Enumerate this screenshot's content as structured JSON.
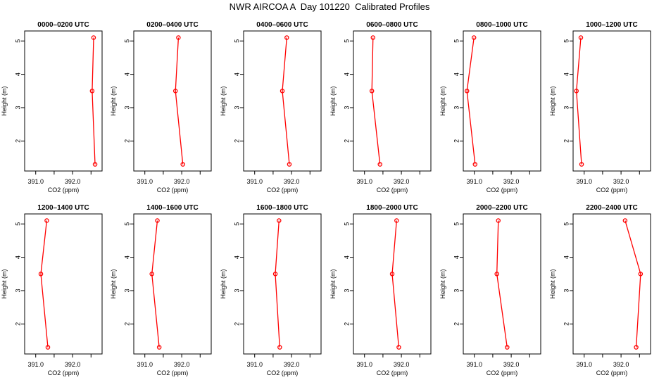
{
  "title": "NWR AIRCOA A  Day 101220  Calibrated Profiles",
  "colors": {
    "series": "#ff0000",
    "axis": "#000000",
    "background": "#ffffff"
  },
  "chart_data": [
    {
      "type": "line",
      "title": "0000–0200 UTC",
      "xlabel": "CO2 (ppm)",
      "ylabel": "Height (m)",
      "xlim": [
        390.7,
        392.8
      ],
      "ylim": [
        1.1,
        5.3
      ],
      "xticks": [
        391.0,
        392.0
      ],
      "xtick_labels": [
        "391.0",
        "392.0"
      ],
      "yticks": [
        2,
        3,
        4,
        5
      ],
      "ytick_labels": [
        "2",
        "3",
        "4",
        "5"
      ],
      "x": [
        392.57,
        392.53,
        392.61
      ],
      "y": [
        5.1,
        3.5,
        1.3
      ]
    },
    {
      "type": "line",
      "title": "0200–0400 UTC",
      "xlabel": "CO2 (ppm)",
      "ylabel": "Height (m)",
      "xlim": [
        390.7,
        392.8
      ],
      "ylim": [
        1.1,
        5.3
      ],
      "xticks": [
        391.0,
        392.0
      ],
      "xtick_labels": [
        "391.0",
        "392.0"
      ],
      "yticks": [
        2,
        3,
        4,
        5
      ],
      "ytick_labels": [
        "2",
        "3",
        "4",
        "5"
      ],
      "x": [
        391.91,
        391.83,
        392.03
      ],
      "y": [
        5.1,
        3.5,
        1.3
      ]
    },
    {
      "type": "line",
      "title": "0400–0600 UTC",
      "xlabel": "CO2 (ppm)",
      "ylabel": "Height (m)",
      "xlim": [
        390.7,
        392.8
      ],
      "ylim": [
        1.1,
        5.3
      ],
      "xticks": [
        391.0,
        392.0
      ],
      "xtick_labels": [
        "391.0",
        "392.0"
      ],
      "yticks": [
        2,
        3,
        4,
        5
      ],
      "ytick_labels": [
        "2",
        "3",
        "4",
        "5"
      ],
      "x": [
        391.87,
        391.75,
        391.94
      ],
      "y": [
        5.1,
        3.5,
        1.3
      ]
    },
    {
      "type": "line",
      "title": "0600–0800 UTC",
      "xlabel": "CO2 (ppm)",
      "ylabel": "Height (m)",
      "xlim": [
        390.7,
        392.8
      ],
      "ylim": [
        1.1,
        5.3
      ],
      "xticks": [
        391.0,
        392.0
      ],
      "xtick_labels": [
        "391.0",
        "392.0"
      ],
      "yticks": [
        2,
        3,
        4,
        5
      ],
      "ytick_labels": [
        "2",
        "3",
        "4",
        "5"
      ],
      "x": [
        391.23,
        391.2,
        391.42
      ],
      "y": [
        5.1,
        3.5,
        1.3
      ]
    },
    {
      "type": "line",
      "title": "0800–1000 UTC",
      "xlabel": "CO2 (ppm)",
      "ylabel": "Height (m)",
      "xlim": [
        390.7,
        392.8
      ],
      "ylim": [
        1.1,
        5.3
      ],
      "xticks": [
        391.0,
        392.0
      ],
      "xtick_labels": [
        "391.0",
        "392.0"
      ],
      "yticks": [
        2,
        3,
        4,
        5
      ],
      "ytick_labels": [
        "2",
        "3",
        "4",
        "5"
      ],
      "x": [
        390.99,
        390.8,
        391.02
      ],
      "y": [
        5.1,
        3.5,
        1.3
      ]
    },
    {
      "type": "line",
      "title": "1000–1200 UTC",
      "xlabel": "CO2 (ppm)",
      "ylabel": "Height (m)",
      "xlim": [
        390.7,
        392.8
      ],
      "ylim": [
        1.1,
        5.3
      ],
      "xticks": [
        391.0,
        392.0
      ],
      "xtick_labels": [
        "391.0",
        "392.0"
      ],
      "yticks": [
        2,
        3,
        4,
        5
      ],
      "ytick_labels": [
        "2",
        "3",
        "4",
        "5"
      ],
      "x": [
        390.91,
        390.79,
        390.93
      ],
      "y": [
        5.1,
        3.5,
        1.3
      ]
    },
    {
      "type": "line",
      "title": "1200–1400 UTC",
      "xlabel": "CO2 (ppm)",
      "ylabel": "Height (m)",
      "xlim": [
        390.7,
        392.8
      ],
      "ylim": [
        1.1,
        5.3
      ],
      "xticks": [
        391.0,
        392.0
      ],
      "xtick_labels": [
        "391.0",
        "392.0"
      ],
      "yticks": [
        2,
        3,
        4,
        5
      ],
      "ytick_labels": [
        "2",
        "3",
        "4",
        "5"
      ],
      "x": [
        391.3,
        391.14,
        391.33
      ],
      "y": [
        5.1,
        3.5,
        1.3
      ]
    },
    {
      "type": "line",
      "title": "1400–1600 UTC",
      "xlabel": "CO2 (ppm)",
      "ylabel": "Height (m)",
      "xlim": [
        390.7,
        392.8
      ],
      "ylim": [
        1.1,
        5.3
      ],
      "xticks": [
        391.0,
        392.0
      ],
      "xtick_labels": [
        "391.0",
        "392.0"
      ],
      "yticks": [
        2,
        3,
        4,
        5
      ],
      "ytick_labels": [
        "2",
        "3",
        "4",
        "5"
      ],
      "x": [
        391.34,
        391.19,
        391.39
      ],
      "y": [
        5.1,
        3.5,
        1.3
      ]
    },
    {
      "type": "line",
      "title": "1600–1800 UTC",
      "xlabel": "CO2 (ppm)",
      "ylabel": "Height (m)",
      "xlim": [
        390.7,
        392.8
      ],
      "ylim": [
        1.1,
        5.3
      ],
      "xticks": [
        391.0,
        392.0
      ],
      "xtick_labels": [
        "391.0",
        "392.0"
      ],
      "yticks": [
        2,
        3,
        4,
        5
      ],
      "ytick_labels": [
        "2",
        "3",
        "4",
        "5"
      ],
      "x": [
        391.66,
        391.56,
        391.68
      ],
      "y": [
        5.1,
        3.5,
        1.3
      ]
    },
    {
      "type": "line",
      "title": "1800–2000 UTC",
      "xlabel": "CO2 (ppm)",
      "ylabel": "Height (m)",
      "xlim": [
        390.7,
        392.8
      ],
      "ylim": [
        1.1,
        5.3
      ],
      "xticks": [
        391.0,
        392.0
      ],
      "xtick_labels": [
        "391.0",
        "392.0"
      ],
      "yticks": [
        2,
        3,
        4,
        5
      ],
      "ytick_labels": [
        "2",
        "3",
        "4",
        "5"
      ],
      "x": [
        391.87,
        391.75,
        391.93
      ],
      "y": [
        5.1,
        3.5,
        1.3
      ]
    },
    {
      "type": "line",
      "title": "2000–2200 UTC",
      "xlabel": "CO2 (ppm)",
      "ylabel": "Height (m)",
      "xlim": [
        390.7,
        392.8
      ],
      "ylim": [
        1.1,
        5.3
      ],
      "xticks": [
        391.0,
        392.0
      ],
      "xtick_labels": [
        "391.0",
        "392.0"
      ],
      "yticks": [
        2,
        3,
        4,
        5
      ],
      "ytick_labels": [
        "2",
        "3",
        "4",
        "5"
      ],
      "x": [
        391.65,
        391.61,
        391.89
      ],
      "y": [
        5.1,
        3.5,
        1.3
      ]
    },
    {
      "type": "line",
      "title": "2200–2400 UTC",
      "xlabel": "CO2 (ppm)",
      "ylabel": "Height (m)",
      "xlim": [
        390.7,
        392.8
      ],
      "ylim": [
        1.1,
        5.3
      ],
      "xticks": [
        391.0,
        392.0
      ],
      "xtick_labels": [
        "391.0",
        "392.0"
      ],
      "yticks": [
        2,
        3,
        4,
        5
      ],
      "ytick_labels": [
        "2",
        "3",
        "4",
        "5"
      ],
      "x": [
        392.11,
        392.53,
        392.41
      ],
      "y": [
        5.1,
        3.5,
        1.3
      ]
    }
  ]
}
